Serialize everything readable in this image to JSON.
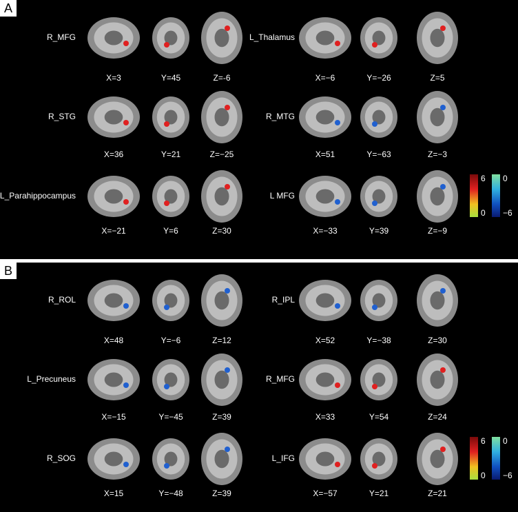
{
  "panels": [
    {
      "label": "A",
      "rows": [
        {
          "region": "R_MFG",
          "coords": [
            "X=3",
            "Y=45",
            "Z=-6"
          ]
        },
        {
          "region": "R_STG",
          "coords": [
            "X=36",
            "Y=21",
            "Z=−25"
          ]
        },
        {
          "region": "L_Parahippocampus",
          "coords": [
            "X=−21",
            "Y=6",
            "Z=30"
          ]
        },
        {
          "region": "L_Thalamus",
          "coords": [
            "X=−6",
            "Y=−26",
            "Z=5"
          ]
        },
        {
          "region": "R_MTG",
          "coords": [
            "X=51",
            "Y=−63",
            "Z=−3"
          ]
        },
        {
          "region": "L MFG",
          "coords": [
            "X=−33",
            "Y=39",
            "Z=−9"
          ]
        }
      ],
      "colorbar": {
        "positive": [
          "6",
          "0"
        ],
        "negative": [
          "0",
          "−6"
        ]
      }
    },
    {
      "label": "B",
      "rows": [
        {
          "region": "R_ROL",
          "coords": [
            "X=48",
            "Y=−6",
            "Z=12"
          ]
        },
        {
          "region": "L_Precuneus",
          "coords": [
            "X=−15",
            "Y=−45",
            "Z=39"
          ]
        },
        {
          "region": "R_SOG",
          "coords": [
            "X=15",
            "Y=−48",
            "Z=39"
          ]
        },
        {
          "region": "R_IPL",
          "coords": [
            "X=52",
            "Y=−38",
            "Z=30"
          ]
        },
        {
          "region": "R_MFG",
          "coords": [
            "X=33",
            "Y=54",
            "Z=24"
          ]
        },
        {
          "region": "L_IFG",
          "coords": [
            "X=−57",
            "Y=21",
            "Z=21"
          ]
        }
      ],
      "colorbar": {
        "positive": [
          "6",
          "0"
        ],
        "negative": [
          "0",
          "−6"
        ]
      }
    }
  ]
}
